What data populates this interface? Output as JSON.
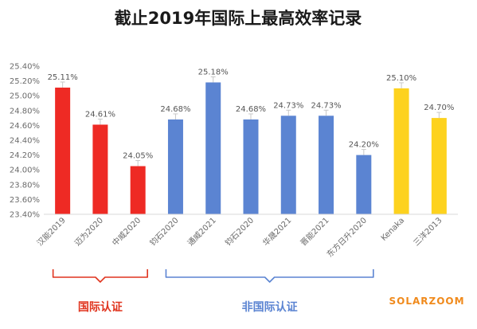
{
  "chart_data": {
    "type": "bar",
    "title": "截止2019年国际上最高效率记录",
    "categories": [
      "汉能2019",
      "迈为2020",
      "中威2020",
      "钧石2020",
      "通威2021",
      "钧石2020",
      "华晟2021",
      "晋能2021",
      "东方日升2020",
      "Kenaka",
      "三洋2013"
    ],
    "values": [
      25.11,
      24.61,
      24.05,
      24.68,
      25.18,
      24.68,
      24.73,
      24.73,
      24.2,
      25.1,
      24.7
    ],
    "data_labels": [
      "25.11%",
      "24.61%",
      "24.05%",
      "24.68%",
      "25.18%",
      "24.68%",
      "24.73%",
      "24.73%",
      "24.20%",
      "25.10%",
      "24.70%"
    ],
    "ylim": [
      23.4,
      25.4
    ],
    "yticks": [
      23.4,
      23.6,
      23.8,
      24.0,
      24.2,
      24.4,
      24.6,
      24.8,
      25.0,
      25.2,
      25.4
    ],
    "ytick_labels": [
      "23.40%",
      "23.60%",
      "23.80%",
      "24.00%",
      "24.20%",
      "24.40%",
      "24.60%",
      "24.80%",
      "25.00%",
      "25.20%",
      "25.40%"
    ],
    "xlabel": "",
    "ylabel": "",
    "grid": false,
    "bar_colors": [
      "#ee2a24",
      "#ee2a24",
      "#ee2a24",
      "#5b84d2",
      "#5b84d2",
      "#5b84d2",
      "#5b84d2",
      "#5b84d2",
      "#5b84d2",
      "#fdd21e",
      "#fdd21e"
    ],
    "groups": [
      {
        "label": "国际认证",
        "start_index": 0,
        "end_index": 2,
        "color": "#e0341e"
      },
      {
        "label": "非国际认证",
        "start_index": 3,
        "end_index": 8,
        "color": "#5b84d2"
      }
    ]
  },
  "watermark": {
    "text": "SOLARZOOM",
    "color": "#f08a1c"
  }
}
